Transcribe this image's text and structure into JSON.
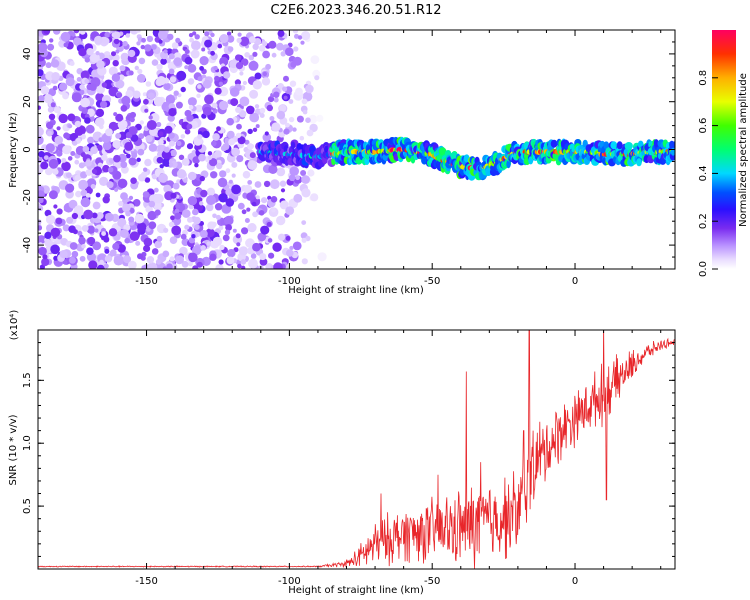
{
  "title": "C2E6.2023.346.20.51.R12",
  "chart_data": [
    {
      "type": "heatmap",
      "xlabel": "Height of straight line (km)",
      "ylabel": "Frequency (Hz)",
      "xlim": [
        -188,
        35
      ],
      "ylim": [
        -50,
        50
      ],
      "xticks": [
        -150,
        -100,
        -50,
        0
      ],
      "yticks": [
        -40,
        -20,
        0,
        20,
        40
      ],
      "colorbar": {
        "label": "Normalized spectral amplitude",
        "range": [
          0,
          1
        ],
        "ticks": [
          "0.0",
          "0.2",
          "0.4",
          "0.6",
          "0.8"
        ],
        "tick_values": [
          0.0,
          0.2,
          0.4,
          0.6,
          0.8
        ]
      },
      "noise_region_x": [
        -188,
        -88
      ],
      "ridge": {
        "x": [
          -110,
          -100,
          -90,
          -80,
          -70,
          -60,
          -50,
          -45,
          -40,
          -35,
          -30,
          -25,
          -20,
          -15,
          -10,
          -5,
          0,
          5,
          10,
          15,
          20,
          25,
          30,
          35
        ],
        "freq": [
          -1,
          -2,
          -3,
          -1,
          -1,
          0,
          -2,
          -5,
          -7,
          -8,
          -7,
          -4,
          -1,
          -1,
          -1,
          -1,
          -1,
          -1,
          -2,
          -2,
          -2,
          -1,
          -1,
          -1
        ]
      }
    },
    {
      "type": "line",
      "xlabel": "Height of straight line (km)",
      "ylabel": "SNR (10 * v/v)",
      "ylabel_multiplier": "(x10⁴)",
      "xlim": [
        -188,
        35
      ],
      "ylim": [
        0,
        1.9
      ],
      "xticks": [
        -150,
        -100,
        -50,
        0
      ],
      "yticks": [
        0.5,
        1.0,
        1.5
      ],
      "ytick_labels": [
        "0.5",
        "1.0",
        "1.5"
      ],
      "color": "#e8262a",
      "envelope": {
        "x": [
          -188,
          -90,
          -80,
          -75,
          -70,
          -60,
          -50,
          -40,
          -35,
          -30,
          -20,
          -18,
          -15,
          -10,
          -5,
          0,
          5,
          10,
          15,
          20,
          25,
          30,
          35
        ],
        "mean": [
          0.02,
          0.02,
          0.04,
          0.1,
          0.2,
          0.28,
          0.3,
          0.33,
          0.35,
          0.38,
          0.45,
          0.58,
          0.8,
          0.95,
          1.1,
          1.2,
          1.3,
          1.4,
          1.5,
          1.62,
          1.72,
          1.78,
          1.81
        ],
        "spread": [
          0.005,
          0.005,
          0.03,
          0.12,
          0.22,
          0.26,
          0.3,
          0.36,
          0.42,
          0.38,
          0.4,
          0.45,
          0.4,
          0.32,
          0.28,
          0.25,
          0.25,
          0.28,
          0.22,
          0.14,
          0.08,
          0.05,
          0.03
        ]
      },
      "peaks": [
        {
          "x": -80,
          "y": 0.07
        },
        {
          "x": -68,
          "y": 0.6
        },
        {
          "x": -48,
          "y": 0.75
        },
        {
          "x": -38,
          "y": 1.57
        },
        {
          "x": -33,
          "y": 0.85
        },
        {
          "x": -16,
          "y": 1.9
        },
        {
          "x": -18,
          "y": 1.1
        },
        {
          "x": 10,
          "y": 1.95
        },
        {
          "x": 11,
          "y": 0.55
        }
      ]
    }
  ],
  "colors": {
    "axis": "#000000",
    "line": "#e8262a"
  }
}
